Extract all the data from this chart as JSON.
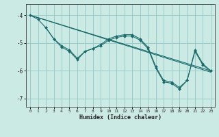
{
  "xlabel": "Humidex (Indice chaleur)",
  "bg_color": "#cceae4",
  "grid_color": "#99cccc",
  "line_color": "#1a6b6b",
  "xlim": [
    -0.5,
    23.5
  ],
  "ylim": [
    -7.3,
    -3.6
  ],
  "yticks": [
    -7,
    -6,
    -5,
    -4
  ],
  "xticks": [
    0,
    1,
    2,
    3,
    4,
    5,
    6,
    7,
    8,
    9,
    10,
    11,
    12,
    13,
    14,
    15,
    16,
    17,
    18,
    19,
    20,
    21,
    22,
    23
  ],
  "lines": [
    {
      "x": [
        0,
        1,
        2,
        3,
        4,
        5,
        6,
        7,
        8,
        9,
        10,
        11,
        12,
        13,
        14,
        15,
        16,
        17,
        18,
        19,
        20,
        21,
        22,
        23
      ],
      "y": [
        -4.0,
        -4.15,
        -4.45,
        -4.85,
        -5.15,
        -5.3,
        -5.6,
        -5.3,
        -5.2,
        -5.05,
        -4.85,
        -4.75,
        -4.7,
        -4.7,
        -4.85,
        -5.15,
        -5.85,
        -6.35,
        -6.4,
        -6.6,
        -6.35,
        -5.25,
        -5.75,
        -6.0
      ],
      "has_markers": true
    },
    {
      "x": [
        0,
        23
      ],
      "y": [
        -4.0,
        -6.0
      ],
      "has_markers": false
    },
    {
      "x": [
        0,
        23
      ],
      "y": [
        -4.0,
        -6.05
      ],
      "has_markers": false
    },
    {
      "x": [
        2,
        3,
        4,
        5,
        6,
        7,
        8,
        9,
        10,
        11,
        12,
        13,
        14,
        15,
        16,
        17,
        18,
        19,
        20,
        21,
        22,
        23
      ],
      "y": [
        -4.45,
        -4.85,
        -5.1,
        -5.25,
        -5.55,
        -5.3,
        -5.2,
        -5.1,
        -4.9,
        -4.8,
        -4.75,
        -4.75,
        -4.9,
        -5.2,
        -5.9,
        -6.4,
        -6.45,
        -6.65,
        -6.35,
        -5.3,
        -5.8,
        -6.0
      ],
      "has_markers": true
    }
  ]
}
